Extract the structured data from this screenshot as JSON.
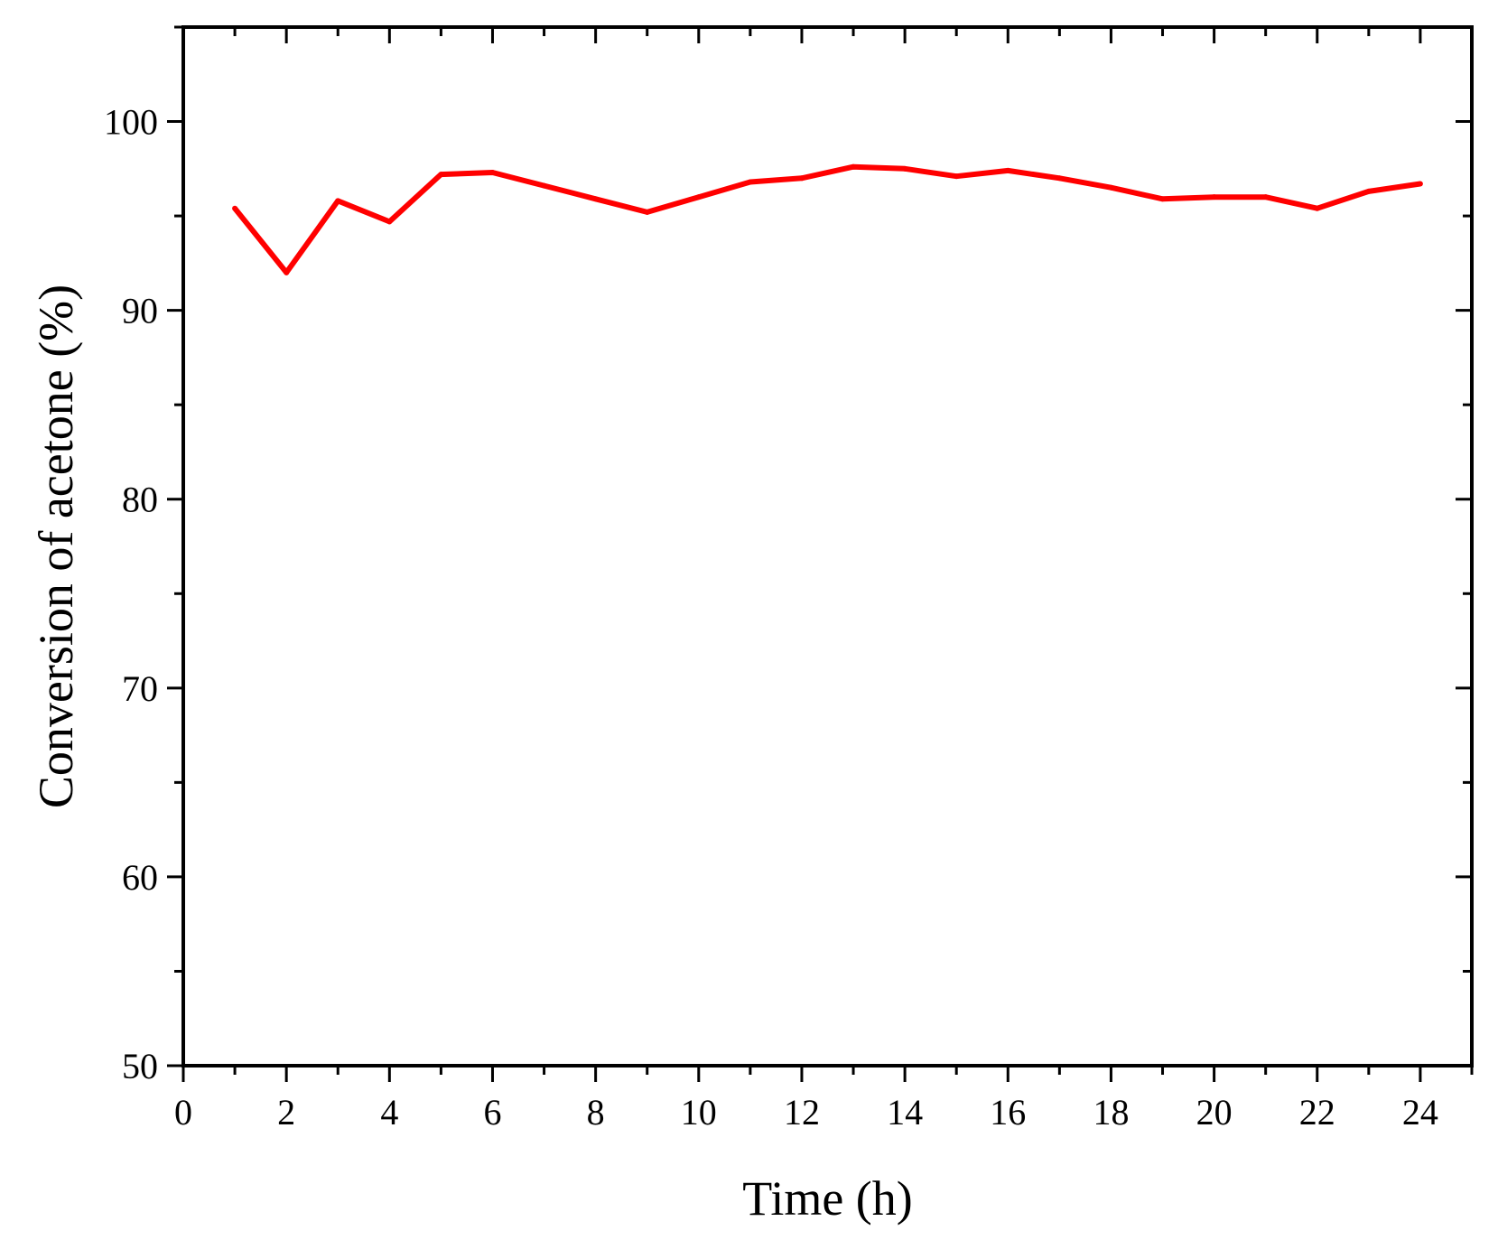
{
  "chart_data": {
    "type": "line",
    "title": "",
    "xlabel": "Time (h)",
    "ylabel": "Conversion of acetone (%)",
    "xlim": [
      0,
      25
    ],
    "ylim": [
      50,
      105
    ],
    "x_ticks": [
      0,
      2,
      4,
      6,
      8,
      10,
      12,
      14,
      16,
      18,
      20,
      22,
      24
    ],
    "x_minor_step": 1,
    "y_ticks": [
      50,
      60,
      70,
      80,
      90,
      100
    ],
    "y_minor_step": 5,
    "grid": false,
    "series": [
      {
        "color": "#ff0000",
        "x": [
          1,
          2,
          3,
          4,
          5,
          6,
          7,
          8,
          9,
          10,
          11,
          12,
          13,
          14,
          15,
          16,
          17,
          18,
          19,
          20,
          21,
          22,
          23,
          24
        ],
        "y": [
          95.4,
          92.0,
          95.8,
          94.7,
          97.2,
          97.3,
          96.6,
          95.9,
          95.2,
          96.0,
          96.8,
          97.0,
          97.6,
          97.5,
          97.1,
          97.4,
          97.0,
          96.5,
          95.9,
          96.0,
          96.0,
          95.4,
          96.3,
          96.7
        ]
      }
    ]
  }
}
